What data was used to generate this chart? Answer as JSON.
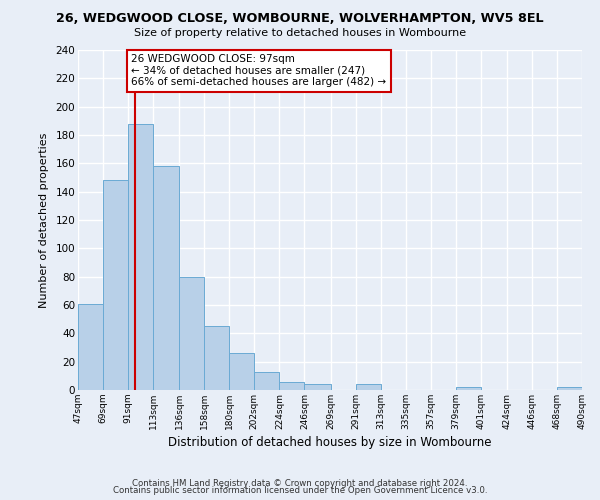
{
  "title": "26, WEDGWOOD CLOSE, WOMBOURNE, WOLVERHAMPTON, WV5 8EL",
  "subtitle": "Size of property relative to detached houses in Wombourne",
  "xlabel": "Distribution of detached houses by size in Wombourne",
  "ylabel": "Number of detached properties",
  "bar_values": [
    61,
    148,
    188,
    158,
    80,
    45,
    26,
    13,
    6,
    4,
    0,
    4,
    0,
    0,
    0,
    2,
    0,
    0,
    0,
    2
  ],
  "bin_edges": [
    47,
    69,
    91,
    113,
    136,
    158,
    180,
    202,
    224,
    246,
    269,
    291,
    313,
    335,
    357,
    379,
    401,
    424,
    446,
    468,
    490
  ],
  "tick_labels": [
    "47sqm",
    "69sqm",
    "91sqm",
    "113sqm",
    "136sqm",
    "158sqm",
    "180sqm",
    "202sqm",
    "224sqm",
    "246sqm",
    "269sqm",
    "291sqm",
    "313sqm",
    "335sqm",
    "357sqm",
    "379sqm",
    "401sqm",
    "424sqm",
    "446sqm",
    "468sqm",
    "490sqm"
  ],
  "bar_color": "#b8d0e8",
  "bar_edge_color": "#6aaad4",
  "property_line_x": 97,
  "property_line_color": "#cc0000",
  "annotation_text": "26 WEDGWOOD CLOSE: 97sqm\n← 34% of detached houses are smaller (247)\n66% of semi-detached houses are larger (482) →",
  "annotation_box_color": "#ffffff",
  "annotation_box_edge_color": "#cc0000",
  "ylim": [
    0,
    240
  ],
  "yticks": [
    0,
    20,
    40,
    60,
    80,
    100,
    120,
    140,
    160,
    180,
    200,
    220,
    240
  ],
  "footer1": "Contains HM Land Registry data © Crown copyright and database right 2024.",
  "footer2": "Contains public sector information licensed under the Open Government Licence v3.0.",
  "bg_color": "#e8eef7",
  "plot_bg_color": "#e8eef7",
  "grid_color": "#ffffff"
}
